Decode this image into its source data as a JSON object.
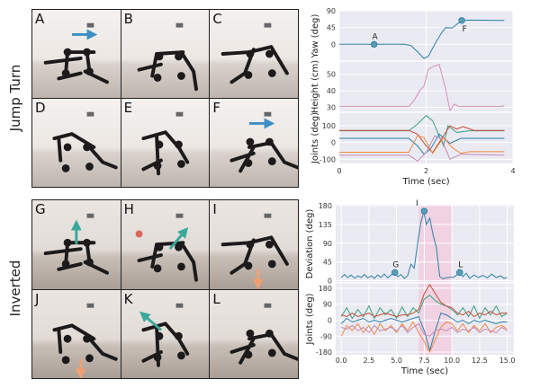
{
  "rows": [
    {
      "label": "Jump Turn",
      "panels": [
        {
          "label": "A",
          "annotation": {
            "type": "arrow",
            "dir": "right",
            "color": "#3b8fc4"
          }
        },
        {
          "label": "B"
        },
        {
          "label": "C"
        },
        {
          "label": "D"
        },
        {
          "label": "E"
        },
        {
          "label": "F",
          "annotation": {
            "type": "arrow",
            "dir": "right",
            "color": "#3b8fc4"
          }
        }
      ]
    },
    {
      "label": "Inverted",
      "panels": [
        {
          "label": "G",
          "annotation": {
            "type": "arrow",
            "dir": "up",
            "color": "#3aa89a"
          }
        },
        {
          "label": "H",
          "annotation": {
            "type": "arrow",
            "dir": "up-right",
            "color": "#3aa89a",
            "dot_color": "#d9665a"
          }
        },
        {
          "label": "I",
          "annotation": {
            "type": "arrow",
            "dir": "down",
            "color": "#f0a070"
          }
        },
        {
          "label": "J",
          "annotation": {
            "type": "arrow",
            "dir": "down",
            "color": "#f0a070"
          }
        },
        {
          "label": "K",
          "annotation": {
            "type": "arrow",
            "dir": "up-left",
            "color": "#3aa89a"
          }
        },
        {
          "label": "L"
        }
      ]
    }
  ],
  "chart_data": [
    {
      "type": "line",
      "xlabel": "Time (sec)",
      "xlim": [
        0,
        4
      ],
      "xticks": [
        "0",
        "2",
        "4"
      ],
      "xtick_values": [
        0,
        2,
        4
      ],
      "grid": true,
      "background": "#eaeaf2",
      "subplots": [
        {
          "ylabel": "Yaw (deg)",
          "ylim": [
            -45,
            90
          ],
          "yticks": [
            0,
            45,
            90
          ],
          "series": [
            {
              "color": "#2f7fa8",
              "points": [
                [
                  0,
                  0
                ],
                [
                  1.5,
                  0
                ],
                [
                  1.65,
                  -3
                ],
                [
                  1.8,
                  -20
                ],
                [
                  1.95,
                  -38
                ],
                [
                  2.05,
                  -32
                ],
                [
                  2.2,
                  0
                ],
                [
                  2.35,
                  30
                ],
                [
                  2.45,
                  45
                ],
                [
                  2.6,
                  44
                ],
                [
                  2.75,
                  58
                ],
                [
                  2.85,
                  64
                ],
                [
                  3.0,
                  65
                ],
                [
                  3.8,
                  64
                ]
              ]
            }
          ],
          "markers": [
            {
              "label": "A",
              "x": 0.8,
              "y": 0
            },
            {
              "label": "F",
              "x": 2.82,
              "y": 64
            }
          ]
        },
        {
          "ylabel": "Height (cm)",
          "ylim": [
            27,
            58
          ],
          "yticks": [
            30,
            40,
            50
          ],
          "series": [
            {
              "color": "#d98fb4",
              "points": [
                [
                  0,
                  30.5
                ],
                [
                  1.6,
                  30.5
                ],
                [
                  1.72,
                  34
                ],
                [
                  1.85,
                  40
                ],
                [
                  1.95,
                  43
                ],
                [
                  2.05,
                  53
                ],
                [
                  2.15,
                  54.5
                ],
                [
                  2.3,
                  56
                ],
                [
                  2.45,
                  41
                ],
                [
                  2.55,
                  28
                ],
                [
                  2.65,
                  32
                ],
                [
                  2.75,
                  30.5
                ],
                [
                  3.7,
                  30.5
                ],
                [
                  3.8,
                  31
                ]
              ]
            }
          ]
        },
        {
          "ylabel": "Joints (deg)",
          "ylim": [
            -125,
            180
          ],
          "yticks": [
            -100,
            0,
            100
          ],
          "series": [
            {
              "color": "#3aa080",
              "points": [
                [
                  0,
                  70
                ],
                [
                  1.6,
                  70
                ],
                [
                  1.8,
                  110
                ],
                [
                  2.0,
                  160
                ],
                [
                  2.15,
                  130
                ],
                [
                  2.4,
                  -20
                ],
                [
                  2.5,
                  100
                ],
                [
                  2.7,
                  60
                ],
                [
                  3.0,
                  70
                ],
                [
                  3.8,
                  70
                ]
              ]
            },
            {
              "color": "#c84b32",
              "points": [
                [
                  0,
                  72
                ],
                [
                  1.6,
                  72
                ],
                [
                  1.8,
                  50
                ],
                [
                  2.0,
                  -20
                ],
                [
                  2.15,
                  -60
                ],
                [
                  2.35,
                  20
                ],
                [
                  2.55,
                  100
                ],
                [
                  2.7,
                  80
                ],
                [
                  2.85,
                  95
                ],
                [
                  3.1,
                  72
                ],
                [
                  3.8,
                  72
                ]
              ]
            },
            {
              "color": "#2f7fa8",
              "points": [
                [
                  0,
                  25
                ],
                [
                  1.6,
                  25
                ],
                [
                  1.8,
                  -20
                ],
                [
                  1.95,
                  -70
                ],
                [
                  2.1,
                  -40
                ],
                [
                  2.3,
                  50
                ],
                [
                  2.55,
                  -5
                ],
                [
                  2.8,
                  25
                ],
                [
                  3.8,
                  25
                ]
              ]
            },
            {
              "color": "#f08a40",
              "points": [
                [
                  0,
                  -58
                ],
                [
                  1.6,
                  -58
                ],
                [
                  1.8,
                  40
                ],
                [
                  1.95,
                  30
                ],
                [
                  2.15,
                  -65
                ],
                [
                  2.4,
                  30
                ],
                [
                  2.6,
                  -30
                ],
                [
                  2.8,
                  -65
                ],
                [
                  3.0,
                  -55
                ],
                [
                  3.8,
                  -55
                ]
              ]
            },
            {
              "color": "#c48ab8",
              "points": [
                [
                  0,
                  -75
                ],
                [
                  1.6,
                  -75
                ],
                [
                  1.8,
                  -110
                ],
                [
                  2.0,
                  -60
                ],
                [
                  2.2,
                  40
                ],
                [
                  2.35,
                  20
                ],
                [
                  2.55,
                  -100
                ],
                [
                  2.8,
                  -70
                ],
                [
                  3.8,
                  -75
                ]
              ]
            }
          ]
        }
      ]
    },
    {
      "type": "line",
      "xlabel": "Time (sec)",
      "xlim": [
        -0.5,
        15.6
      ],
      "xticks": [
        "0.0",
        "2.5",
        "5.0",
        "7.5",
        "10.0",
        "12.5",
        "15.0"
      ],
      "xtick_values": [
        0,
        2.5,
        5,
        7.5,
        10,
        12.5,
        15
      ],
      "grid": true,
      "background": "#eaeaf2",
      "shaded_region": {
        "x": [
          7,
          10
        ],
        "color": "#f2c8dc"
      },
      "subplots": [
        {
          "ylabel": "Deviation (deg)",
          "ylim": [
            -5,
            182
          ],
          "yticks": [
            0,
            45,
            90,
            135,
            180
          ],
          "series": [
            {
              "color": "#2f7fa8",
              "points": [
                [
                  0,
                  8
                ],
                [
                  0.3,
                  15
                ],
                [
                  0.6,
                  8
                ],
                [
                  0.9,
                  14
                ],
                [
                  1.2,
                  6
                ],
                [
                  1.5,
                  12
                ],
                [
                  1.8,
                  8
                ],
                [
                  2.1,
                  15
                ],
                [
                  2.4,
                  7
                ],
                [
                  2.7,
                  12
                ],
                [
                  3.0,
                  6
                ],
                [
                  3.3,
                  14
                ],
                [
                  3.6,
                  8
                ],
                [
                  3.9,
                  16
                ],
                [
                  4.2,
                  7
                ],
                [
                  4.5,
                  14
                ],
                [
                  4.8,
                  20
                ],
                [
                  5.1,
                  10
                ],
                [
                  5.4,
                  15
                ],
                [
                  5.7,
                  6
                ],
                [
                  6.0,
                  12
                ],
                [
                  6.3,
                  40
                ],
                [
                  6.6,
                  30
                ],
                [
                  6.9,
                  90
                ],
                [
                  7.2,
                  140
                ],
                [
                  7.45,
                  165
                ],
                [
                  7.7,
                  135
                ],
                [
                  8.0,
                  150
                ],
                [
                  8.3,
                  110
                ],
                [
                  8.6,
                  80
                ],
                [
                  8.9,
                  10
                ],
                [
                  9.2,
                  5
                ],
                [
                  9.6,
                  8
                ],
                [
                  10.2,
                  9
                ],
                [
                  10.7,
                  20
                ],
                [
                  11.0,
                  10
                ],
                [
                  11.3,
                  18
                ],
                [
                  11.6,
                  6
                ],
                [
                  12.0,
                  14
                ],
                [
                  12.4,
                  8
                ],
                [
                  12.8,
                  13
                ],
                [
                  13.2,
                  7
                ],
                [
                  13.6,
                  16
                ],
                [
                  14.0,
                  8
                ],
                [
                  14.4,
                  12
                ],
                [
                  14.7,
                  6
                ],
                [
                  15.0,
                  8
                ]
              ]
            }
          ],
          "markers": [
            {
              "label": "G",
              "x": 4.85,
              "y": 20
            },
            {
              "label": "I",
              "x": 7.5,
              "y": 167
            },
            {
              "label": "L",
              "x": 10.7,
              "y": 20
            }
          ]
        },
        {
          "ylabel": "Joints (deg)",
          "ylim": [
            -195,
            210
          ],
          "yticks": [
            -180,
            -90,
            0,
            90,
            180
          ],
          "x_step": 0.5,
          "series": [
            {
              "color": "#3aa080",
              "values": [
                20,
                70,
                10,
                60,
                20,
                80,
                10,
                70,
                30,
                60,
                10,
                75,
                20,
                70,
                40,
                120,
                140,
                110,
                90,
                80,
                60,
                30,
                70,
                20,
                80,
                10,
                70,
                30,
                80,
                20,
                40
              ]
            },
            {
              "color": "#c84b32",
              "values": [
                30,
                20,
                40,
                20,
                30,
                40,
                20,
                30,
                40,
                30,
                20,
                30,
                30,
                40,
                60,
                150,
                200,
                150,
                100,
                80,
                70,
                40,
                30,
                50,
                20,
                40,
                30,
                50,
                30,
                40,
                40
              ]
            },
            {
              "color": "#2f7fa8",
              "values": [
                -20,
                10,
                -10,
                0,
                10,
                -10,
                0,
                -10,
                0,
                10,
                0,
                -10,
                0,
                10,
                20,
                -60,
                -170,
                -60,
                40,
                30,
                10,
                -10,
                0,
                -20,
                0,
                -10,
                0,
                -10,
                -20,
                -10,
                -10
              ]
            },
            {
              "color": "#f08a40",
              "values": [
                -90,
                -30,
                -60,
                -20,
                -70,
                -30,
                -80,
                -20,
                -60,
                -30,
                -70,
                -20,
                -60,
                -10,
                -70,
                -120,
                -180,
                -110,
                -40,
                -10,
                -20,
                -60,
                -20,
                -70,
                -30,
                -60,
                -20,
                -70,
                -40,
                -30,
                -50
              ]
            },
            {
              "color": "#c48ab8",
              "values": [
                -40,
                -50,
                -30,
                -60,
                -40,
                -70,
                -30,
                -60,
                -50,
                -40,
                -60,
                -30,
                -70,
                -40,
                -20,
                -80,
                -90,
                -60,
                -50,
                -60,
                -40,
                -70,
                -50,
                -60,
                -40,
                -70,
                -50,
                -60,
                -70,
                -40,
                -60
              ]
            }
          ]
        }
      ]
    }
  ]
}
